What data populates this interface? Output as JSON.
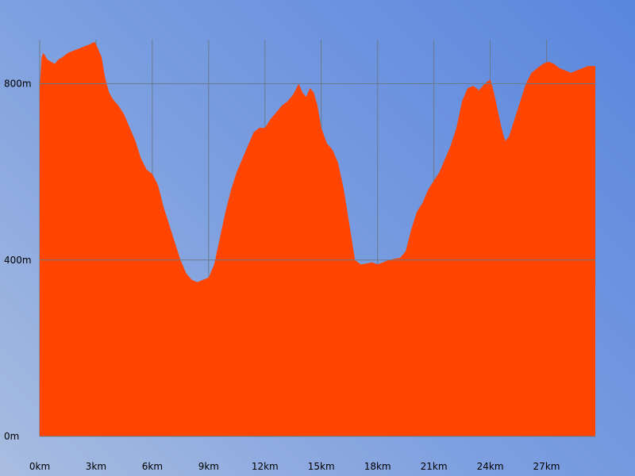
{
  "chart_data": {
    "type": "area",
    "title": "",
    "xlabel": "",
    "ylabel": "",
    "x_unit": "km",
    "y_unit": "m",
    "xlim": [
      0,
      29.6
    ],
    "ylim": [
      0,
      900
    ],
    "x_ticks": [
      "0km",
      "3km",
      "6km",
      "9km",
      "12km",
      "15km",
      "18km",
      "21km",
      "24km",
      "27km"
    ],
    "x_tick_values": [
      0,
      3,
      6,
      9,
      12,
      15,
      18,
      21,
      24,
      27
    ],
    "x_gridlines": [
      3,
      6,
      9,
      12,
      15,
      18,
      21,
      24,
      27
    ],
    "y_ticks": [
      "0m",
      "400m",
      "800m"
    ],
    "y_tick_values": [
      0,
      400,
      800
    ],
    "grid": true,
    "fill_color": "#ff4500",
    "grid_color": "#6b7a8c",
    "series": [
      {
        "x": [
          0,
          0.1,
          0.2,
          0.4,
          0.6,
          0.8,
          1.0,
          1.2,
          1.5,
          1.8,
          2.1,
          2.4,
          2.7,
          2.9,
          3.0,
          3.1,
          3.3,
          3.5,
          3.7,
          3.9,
          4.2,
          4.5,
          4.8,
          5.1,
          5.4,
          5.7,
          6.0,
          6.3,
          6.6,
          6.9,
          7.2,
          7.5,
          7.8,
          8.1,
          8.4,
          8.7,
          9.0,
          9.3,
          9.6,
          9.9,
          10.2,
          10.5,
          10.8,
          11.1,
          11.4,
          11.7,
          12.0,
          12.3,
          12.6,
          12.9,
          13.2,
          13.5,
          13.8,
          14.0,
          14.2,
          14.4,
          14.6,
          14.8,
          15.0,
          15.3,
          15.6,
          15.9,
          16.2,
          16.5,
          16.8,
          17.1,
          17.4,
          17.7,
          18.0,
          18.3,
          18.6,
          18.9,
          19.2,
          19.5,
          19.8,
          20.1,
          20.4,
          20.7,
          21.0,
          21.3,
          21.6,
          21.9,
          22.2,
          22.5,
          22.8,
          23.1,
          23.4,
          23.7,
          24.0,
          24.2,
          24.4,
          24.6,
          24.8,
          25.0,
          25.3,
          25.6,
          25.9,
          26.2,
          26.5,
          26.8,
          27.1,
          27.4,
          27.7,
          28.0,
          28.3,
          28.6,
          28.9,
          29.2,
          29.6
        ],
        "values": [
          790,
          860,
          870,
          855,
          850,
          845,
          855,
          860,
          870,
          875,
          880,
          885,
          890,
          895,
          890,
          880,
          860,
          810,
          780,
          765,
          750,
          730,
          700,
          670,
          630,
          605,
          595,
          570,
          520,
          480,
          440,
          400,
          370,
          355,
          350,
          355,
          360,
          390,
          450,
          510,
          560,
          600,
          630,
          660,
          690,
          700,
          700,
          720,
          735,
          750,
          760,
          775,
          800,
          780,
          770,
          790,
          780,
          750,
          700,
          665,
          650,
          620,
          560,
          480,
          400,
          390,
          392,
          395,
          390,
          395,
          400,
          403,
          405,
          420,
          470,
          510,
          530,
          560,
          580,
          600,
          630,
          660,
          700,
          760,
          790,
          795,
          785,
          800,
          810,
          780,
          740,
          700,
          670,
          680,
          720,
          760,
          800,
          825,
          835,
          845,
          850,
          845,
          835,
          830,
          825,
          830,
          835,
          840,
          840
        ]
      }
    ]
  }
}
